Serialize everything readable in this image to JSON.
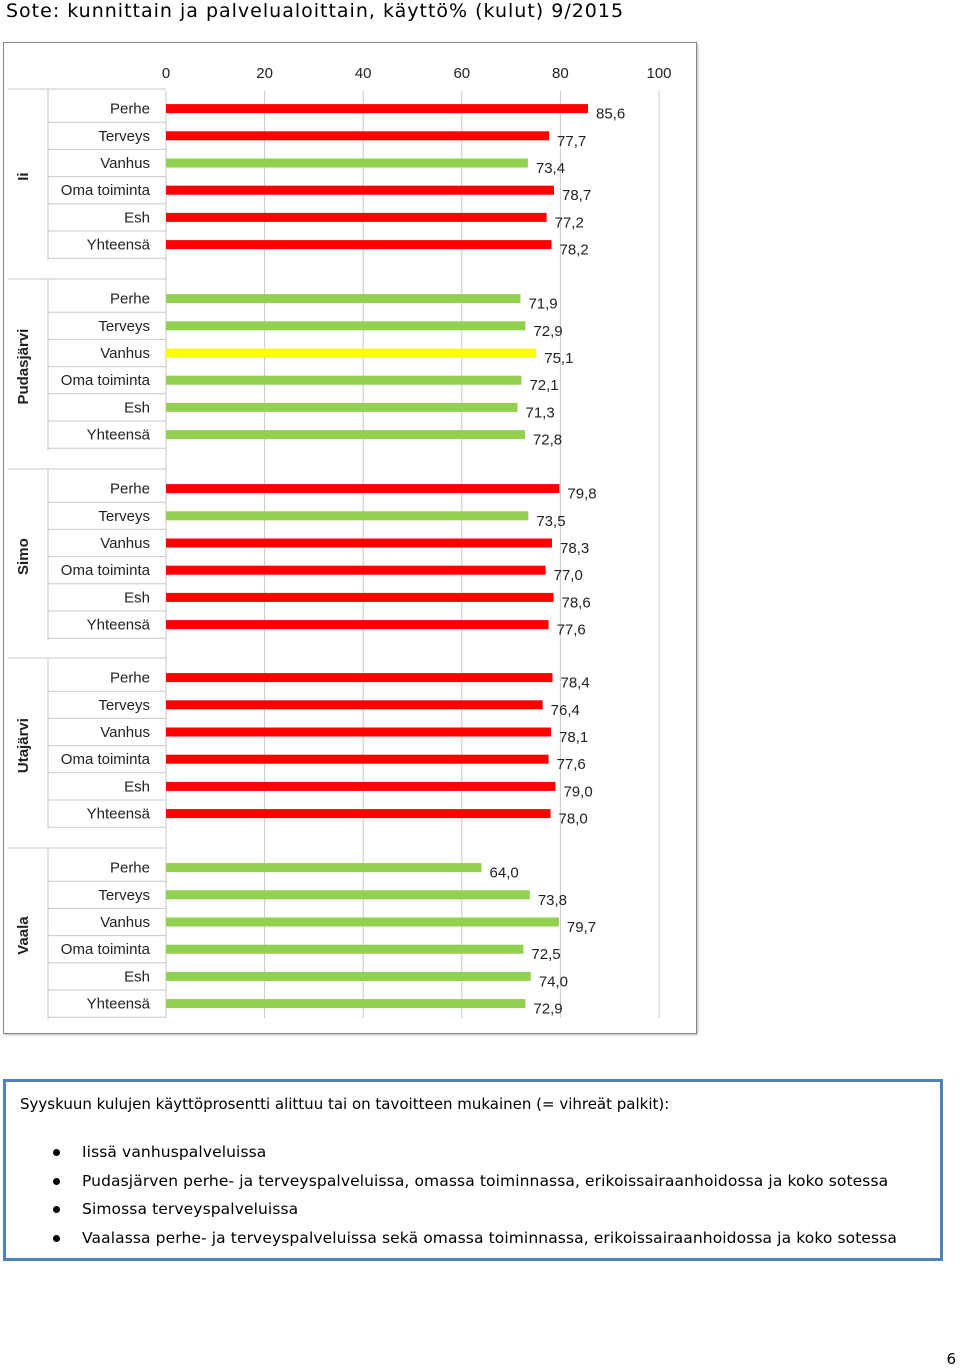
{
  "page": {
    "title": "Sote: kunnittain ja palvelualoittain, käyttö% (kulut) 9/2015",
    "page_number": "6"
  },
  "colors": {
    "red": "#ff0000",
    "green": "#92d050",
    "yellow": "#ffff00"
  },
  "chart_data": {
    "type": "bar",
    "orientation": "horizontal",
    "title": "",
    "xlim": [
      0,
      100
    ],
    "x_ticks": [
      0,
      20,
      40,
      60,
      80,
      100
    ],
    "x_tick_labels": [
      "0",
      "20",
      "40",
      "60",
      "80",
      "100"
    ],
    "x_axis_position": "top",
    "grid": true,
    "legend": "none",
    "decimal_separator": ",",
    "categories": [
      "Perhe",
      "Terveys",
      "Vanhus",
      "Oma toiminta",
      "Esh",
      "Yhteensä"
    ],
    "groups": [
      {
        "name": "Ii",
        "values": [
          85.6,
          77.7,
          73.4,
          78.7,
          77.2,
          78.2
        ],
        "colors": [
          "red",
          "red",
          "green",
          "red",
          "red",
          "red"
        ]
      },
      {
        "name": "Pudasjärvi",
        "values": [
          71.9,
          72.9,
          75.1,
          72.1,
          71.3,
          72.8
        ],
        "colors": [
          "green",
          "green",
          "yellow",
          "green",
          "green",
          "green"
        ]
      },
      {
        "name": "Simo",
        "values": [
          79.8,
          73.5,
          78.3,
          77.0,
          78.6,
          77.6
        ],
        "colors": [
          "red",
          "green",
          "red",
          "red",
          "red",
          "red"
        ]
      },
      {
        "name": "Utajärvi",
        "values": [
          78.4,
          76.4,
          78.1,
          77.6,
          79.0,
          78.0
        ],
        "colors": [
          "red",
          "red",
          "red",
          "red",
          "red",
          "red"
        ]
      },
      {
        "name": "Vaala",
        "values": [
          64.0,
          73.8,
          79.7,
          72.5,
          74.0,
          72.9
        ],
        "colors": [
          "green",
          "green",
          "green",
          "green",
          "green",
          "green"
        ]
      }
    ]
  },
  "info": {
    "intro": "Syyskuun kulujen käyttöprosentti alittuu tai on tavoitteen mukainen (= vihreät palkit):",
    "items": [
      "Iissä vanhuspalveluissa",
      "Pudasjärven perhe- ja terveyspalveluissa, omassa toiminnassa, erikoissairaanhoidossa ja koko sotessa",
      "Simossa terveyspalveluissa",
      "Vaalassa perhe- ja terveyspalveluissa sekä omassa toiminnassa, erikoissairaanhoidossa ja koko sotessa"
    ]
  }
}
